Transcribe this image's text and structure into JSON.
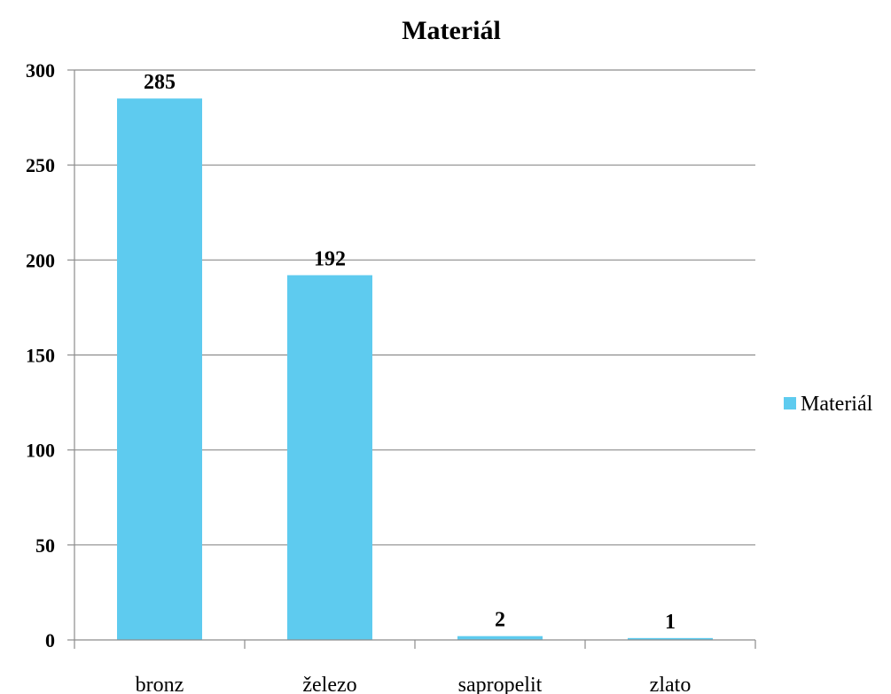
{
  "chart_data": {
    "type": "bar",
    "title": "Materiál",
    "categories": [
      "bronz",
      "železo",
      "sapropelit",
      "zlato"
    ],
    "series": [
      {
        "name": "Materiál",
        "values": [
          285,
          192,
          2,
          1
        ]
      }
    ],
    "data_labels": [
      "285",
      "192",
      "2",
      "1"
    ],
    "yticks": [
      0,
      50,
      100,
      150,
      200,
      250,
      300
    ],
    "ylim": [
      0,
      300
    ],
    "grid": true,
    "legend": "right",
    "colors": {
      "bar": "#5ecbef"
    }
  }
}
